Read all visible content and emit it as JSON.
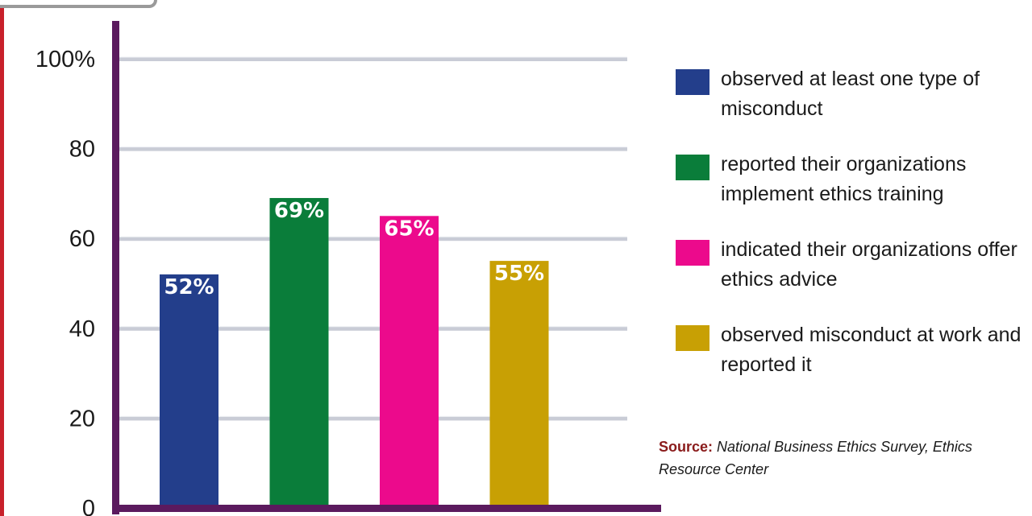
{
  "chart_data": {
    "type": "bar",
    "categories": [
      "observed at least one type of misconduct",
      "reported their organizations implement ethics training",
      "indicated their organizations offer ethics advice",
      "observed misconduct at work and reported it"
    ],
    "values": [
      52,
      69,
      65,
      55
    ],
    "data_labels": [
      "52%",
      "69%",
      "65%",
      "55%"
    ],
    "colors": [
      "#233e8b",
      "#0a7d3a",
      "#ec0a8c",
      "#c8a004"
    ],
    "ylim": [
      0,
      100
    ],
    "yticks": [
      0,
      20,
      40,
      60,
      80,
      100
    ],
    "ytick_labels": [
      "0",
      "20",
      "40",
      "60",
      "80",
      "100%"
    ],
    "grid": true,
    "legend_position": "right",
    "axis_color": "#5b1a5e",
    "title": "",
    "xlabel": "",
    "ylabel": ""
  },
  "legend": {
    "items": [
      {
        "label": "observed at least one type of misconduct",
        "color": "#233e8b"
      },
      {
        "label": "reported their organizations implement ethics training",
        "color": "#0a7d3a"
      },
      {
        "label": "indicated their organizations offer ethics advice",
        "color": "#ec0a8c"
      },
      {
        "label": "observed misconduct at work and reported it",
        "color": "#c8a004"
      }
    ]
  },
  "source": {
    "label": "Source:",
    "text": "National Business Ethics Survey, Ethics Resource Center"
  }
}
